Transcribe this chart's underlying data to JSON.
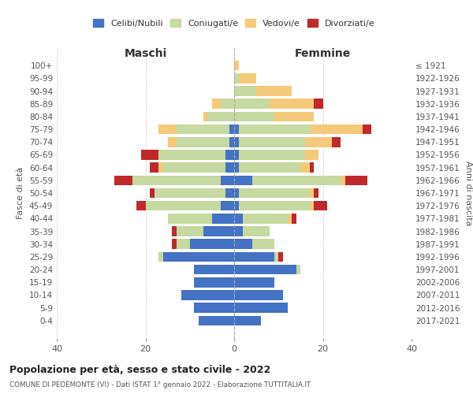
{
  "age_groups": [
    "0-4",
    "5-9",
    "10-14",
    "15-19",
    "20-24",
    "25-29",
    "30-34",
    "35-39",
    "40-44",
    "45-49",
    "50-54",
    "55-59",
    "60-64",
    "65-69",
    "70-74",
    "75-79",
    "80-84",
    "85-89",
    "90-94",
    "95-99",
    "100+"
  ],
  "birth_years": [
    "2017-2021",
    "2012-2016",
    "2007-2011",
    "2002-2006",
    "1997-2001",
    "1992-1996",
    "1987-1991",
    "1982-1986",
    "1977-1981",
    "1972-1976",
    "1967-1971",
    "1962-1966",
    "1957-1961",
    "1952-1956",
    "1947-1951",
    "1942-1946",
    "1937-1941",
    "1932-1936",
    "1927-1931",
    "1922-1926",
    "≤ 1921"
  ],
  "males": {
    "celibi": [
      8,
      9,
      12,
      9,
      9,
      16,
      10,
      7,
      5,
      3,
      2,
      3,
      2,
      2,
      1,
      1,
      0,
      0,
      0,
      0,
      0
    ],
    "coniugati": [
      0,
      0,
      0,
      0,
      0,
      1,
      3,
      6,
      10,
      17,
      16,
      20,
      14,
      15,
      12,
      12,
      6,
      3,
      0,
      0,
      0
    ],
    "vedovi": [
      0,
      0,
      0,
      0,
      0,
      0,
      0,
      0,
      0,
      0,
      0,
      0,
      1,
      0,
      2,
      4,
      1,
      2,
      0,
      0,
      0
    ],
    "divorziati": [
      0,
      0,
      0,
      0,
      0,
      0,
      1,
      1,
      0,
      2,
      1,
      4,
      2,
      4,
      0,
      0,
      0,
      0,
      0,
      0,
      0
    ]
  },
  "females": {
    "nubili": [
      6,
      12,
      11,
      9,
      14,
      9,
      4,
      2,
      2,
      1,
      1,
      4,
      1,
      1,
      1,
      1,
      0,
      0,
      0,
      0,
      0
    ],
    "coniugate": [
      0,
      0,
      0,
      0,
      1,
      1,
      5,
      6,
      10,
      16,
      16,
      20,
      14,
      15,
      15,
      16,
      9,
      8,
      5,
      1,
      0
    ],
    "vedove": [
      0,
      0,
      0,
      0,
      0,
      0,
      0,
      0,
      1,
      1,
      1,
      1,
      2,
      3,
      6,
      12,
      9,
      10,
      8,
      4,
      1
    ],
    "divorziate": [
      0,
      0,
      0,
      0,
      0,
      1,
      0,
      0,
      1,
      3,
      1,
      5,
      1,
      0,
      2,
      2,
      0,
      2,
      0,
      0,
      0
    ]
  },
  "colors": {
    "celibi": "#4472C4",
    "coniugati": "#c5d9a0",
    "vedovi": "#f5c97a",
    "divorziati": "#c0292b"
  },
  "xlim": 40,
  "title": "Popolazione per età, sesso e stato civile - 2022",
  "subtitle": "COMUNE DI PEDEMONTE (VI) - Dati ISTAT 1° gennaio 2022 - Elaborazione TUTTITALIA.IT",
  "ylabel_left": "Fasce di età",
  "ylabel_right": "Anni di nascita",
  "xlabel_left": "Maschi",
  "xlabel_right": "Femmine",
  "legend_labels": [
    "Celibi/Nubili",
    "Coniugati/e",
    "Vedovi/e",
    "Divorziati/e"
  ],
  "bg_color": "#ffffff",
  "grid_color": "#cccccc"
}
